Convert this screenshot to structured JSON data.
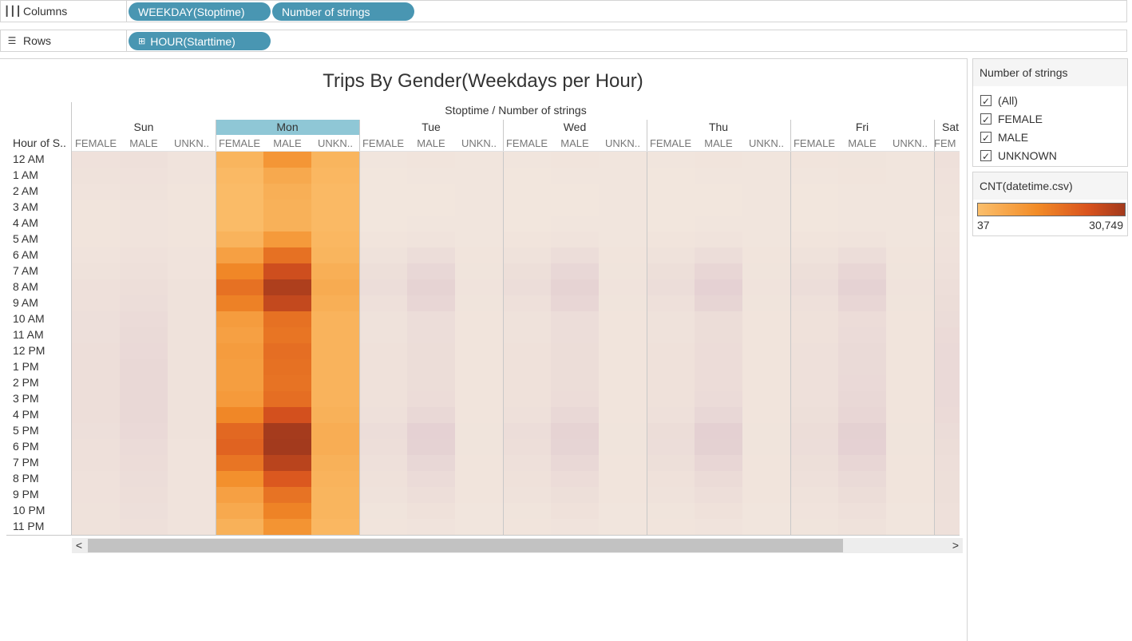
{
  "shelves": {
    "columns": {
      "label": "Columns",
      "icon": "columns-icon",
      "pills": [
        "WEEKDAY(Stoptime)",
        "Number of strings"
      ]
    },
    "rows": {
      "label": "Rows",
      "icon": "rows-icon",
      "pills": [
        "HOUR(Starttime)"
      ]
    }
  },
  "view": {
    "title": "Trips By Gender(Weekdays per Hour)",
    "column_field": "Stoptime  /  Number of strings",
    "row_header": "Hour of S..",
    "days": [
      "Sun",
      "Mon",
      "Tue",
      "Wed",
      "Thu",
      "Fri",
      "Sat"
    ],
    "selected_day": "Mon",
    "gender_headers": [
      "FEMALE",
      "MALE",
      "UNKN..",
      "FEMALE",
      "MALE",
      "UNKN..",
      "FEMALE",
      "MALE",
      "UNKN..",
      "FEMALE",
      "MALE",
      "UNKN..",
      "FEMALE",
      "MALE",
      "UNKN..",
      "FEMALE",
      "MALE",
      "UNKN..",
      "FEM"
    ],
    "hours": [
      "12 AM",
      "1 AM",
      "2 AM",
      "3 AM",
      "4 AM",
      "5 AM",
      "6 AM",
      "7 AM",
      "8 AM",
      "9 AM",
      "10 AM",
      "11 AM",
      "12 PM",
      "1 PM",
      "2 PM",
      "3 PM",
      "4 PM",
      "5 PM",
      "6 PM",
      "7 PM",
      "8 PM",
      "9 PM",
      "10 PM",
      "11 PM"
    ]
  },
  "chart_data": {
    "type": "heatmap",
    "title": "Trips By Gender(Weekdays per Hour)",
    "x_field": "Stoptime  /  Number of strings",
    "y_label": "Hour of S..",
    "color_scale": {
      "label": "CNT(datetime.csv)",
      "min": 37,
      "max": 30749,
      "colors": [
        "#fbbf6c",
        "#f28c28",
        "#d9531e",
        "#a33a1d"
      ]
    },
    "series_note": "Values are approximate intensities 0-1 estimated from cell color",
    "sun": {
      "FEMALE": [
        0.07,
        0.06,
        0.05,
        0.04,
        0.04,
        0.04,
        0.05,
        0.06,
        0.08,
        0.08,
        0.09,
        0.09,
        0.1,
        0.1,
        0.1,
        0.1,
        0.1,
        0.09,
        0.08,
        0.08,
        0.07,
        0.07,
        0.06,
        0.06
      ],
      "MALE": [
        0.08,
        0.07,
        0.06,
        0.05,
        0.05,
        0.05,
        0.07,
        0.08,
        0.1,
        0.11,
        0.13,
        0.14,
        0.15,
        0.16,
        0.16,
        0.16,
        0.16,
        0.15,
        0.13,
        0.12,
        0.11,
        0.1,
        0.09,
        0.08
      ],
      "UNKNOWN": [
        0.05,
        0.05,
        0.04,
        0.04,
        0.04,
        0.04,
        0.05,
        0.05,
        0.06,
        0.06,
        0.06,
        0.06,
        0.06,
        0.06,
        0.06,
        0.06,
        0.06,
        0.06,
        0.05,
        0.05,
        0.05,
        0.05,
        0.05,
        0.05
      ]
    },
    "mon": {
      "FEMALE": [
        0.3,
        0.28,
        0.27,
        0.27,
        0.27,
        0.31,
        0.4,
        0.52,
        0.62,
        0.55,
        0.42,
        0.4,
        0.42,
        0.41,
        0.41,
        0.43,
        0.52,
        0.66,
        0.68,
        0.6,
        0.48,
        0.4,
        0.36,
        0.32
      ],
      "MALE": [
        0.45,
        0.36,
        0.33,
        0.32,
        0.32,
        0.43,
        0.62,
        0.8,
        0.95,
        0.85,
        0.62,
        0.6,
        0.63,
        0.62,
        0.61,
        0.63,
        0.78,
        0.99,
        1.0,
        0.9,
        0.73,
        0.61,
        0.54,
        0.46
      ],
      "UNKNOWN": [
        0.3,
        0.29,
        0.28,
        0.28,
        0.28,
        0.29,
        0.3,
        0.33,
        0.35,
        0.33,
        0.31,
        0.31,
        0.31,
        0.31,
        0.31,
        0.31,
        0.32,
        0.34,
        0.34,
        0.32,
        0.31,
        0.3,
        0.3,
        0.29
      ]
    },
    "tue": {
      "FEMALE": [
        0.04,
        0.03,
        0.03,
        0.03,
        0.03,
        0.05,
        0.09,
        0.13,
        0.15,
        0.12,
        0.09,
        0.09,
        0.1,
        0.1,
        0.1,
        0.1,
        0.12,
        0.15,
        0.14,
        0.12,
        0.1,
        0.08,
        0.06,
        0.05
      ],
      "MALE": [
        0.05,
        0.04,
        0.03,
        0.03,
        0.04,
        0.07,
        0.15,
        0.24,
        0.3,
        0.25,
        0.15,
        0.15,
        0.16,
        0.16,
        0.16,
        0.17,
        0.22,
        0.32,
        0.31,
        0.24,
        0.18,
        0.14,
        0.1,
        0.07
      ],
      "UNKNOWN": [
        0.04,
        0.04,
        0.04,
        0.04,
        0.04,
        0.04,
        0.05,
        0.06,
        0.07,
        0.06,
        0.05,
        0.05,
        0.05,
        0.05,
        0.05,
        0.05,
        0.05,
        0.06,
        0.06,
        0.05,
        0.05,
        0.05,
        0.04,
        0.04
      ]
    },
    "wed": {
      "FEMALE": [
        0.04,
        0.03,
        0.03,
        0.03,
        0.03,
        0.05,
        0.09,
        0.13,
        0.15,
        0.12,
        0.09,
        0.09,
        0.1,
        0.1,
        0.1,
        0.1,
        0.12,
        0.15,
        0.14,
        0.12,
        0.1,
        0.08,
        0.06,
        0.05
      ],
      "MALE": [
        0.05,
        0.04,
        0.03,
        0.03,
        0.04,
        0.07,
        0.15,
        0.24,
        0.3,
        0.25,
        0.15,
        0.15,
        0.16,
        0.16,
        0.16,
        0.17,
        0.22,
        0.3,
        0.29,
        0.22,
        0.17,
        0.13,
        0.1,
        0.07
      ],
      "UNKNOWN": [
        0.04,
        0.04,
        0.04,
        0.04,
        0.04,
        0.04,
        0.05,
        0.06,
        0.07,
        0.06,
        0.05,
        0.05,
        0.05,
        0.05,
        0.05,
        0.05,
        0.05,
        0.06,
        0.06,
        0.05,
        0.05,
        0.05,
        0.04,
        0.04
      ]
    },
    "thu": {
      "FEMALE": [
        0.04,
        0.03,
        0.03,
        0.03,
        0.03,
        0.05,
        0.09,
        0.13,
        0.15,
        0.12,
        0.09,
        0.09,
        0.1,
        0.1,
        0.1,
        0.1,
        0.12,
        0.16,
        0.15,
        0.13,
        0.1,
        0.08,
        0.06,
        0.05
      ],
      "MALE": [
        0.05,
        0.04,
        0.03,
        0.03,
        0.04,
        0.07,
        0.15,
        0.26,
        0.32,
        0.27,
        0.16,
        0.16,
        0.17,
        0.17,
        0.17,
        0.18,
        0.24,
        0.34,
        0.33,
        0.26,
        0.19,
        0.14,
        0.1,
        0.07
      ],
      "UNKNOWN": [
        0.04,
        0.04,
        0.04,
        0.04,
        0.04,
        0.04,
        0.05,
        0.06,
        0.07,
        0.06,
        0.05,
        0.05,
        0.05,
        0.05,
        0.05,
        0.05,
        0.05,
        0.06,
        0.06,
        0.05,
        0.05,
        0.05,
        0.04,
        0.04
      ]
    },
    "fri": {
      "FEMALE": [
        0.05,
        0.04,
        0.03,
        0.03,
        0.03,
        0.05,
        0.09,
        0.13,
        0.15,
        0.12,
        0.1,
        0.1,
        0.11,
        0.11,
        0.11,
        0.12,
        0.13,
        0.16,
        0.15,
        0.13,
        0.11,
        0.09,
        0.07,
        0.06
      ],
      "MALE": [
        0.06,
        0.05,
        0.04,
        0.04,
        0.04,
        0.07,
        0.15,
        0.25,
        0.31,
        0.26,
        0.17,
        0.18,
        0.2,
        0.2,
        0.21,
        0.22,
        0.26,
        0.33,
        0.32,
        0.26,
        0.2,
        0.16,
        0.12,
        0.09
      ],
      "UNKNOWN": [
        0.04,
        0.04,
        0.04,
        0.04,
        0.04,
        0.04,
        0.05,
        0.06,
        0.07,
        0.06,
        0.05,
        0.05,
        0.05,
        0.05,
        0.05,
        0.05,
        0.05,
        0.06,
        0.06,
        0.05,
        0.05,
        0.05,
        0.04,
        0.04
      ]
    },
    "sat_female_partial": [
      0.07,
      0.06,
      0.05,
      0.05,
      0.04,
      0.05,
      0.06,
      0.07,
      0.09,
      0.1,
      0.11,
      0.12,
      0.13,
      0.13,
      0.13,
      0.13,
      0.12,
      0.11,
      0.1,
      0.09,
      0.08,
      0.08,
      0.07,
      0.07
    ]
  },
  "legend_filter": {
    "title": "Number of strings",
    "items": [
      "(All)",
      "FEMALE",
      "MALE",
      "UNKNOWN"
    ]
  },
  "legend_color": {
    "title": "CNT(datetime.csv)",
    "min_label": "37",
    "max_label": "30,749"
  },
  "scrollbar": {
    "left_arrow": "<",
    "right_arrow": ">"
  }
}
